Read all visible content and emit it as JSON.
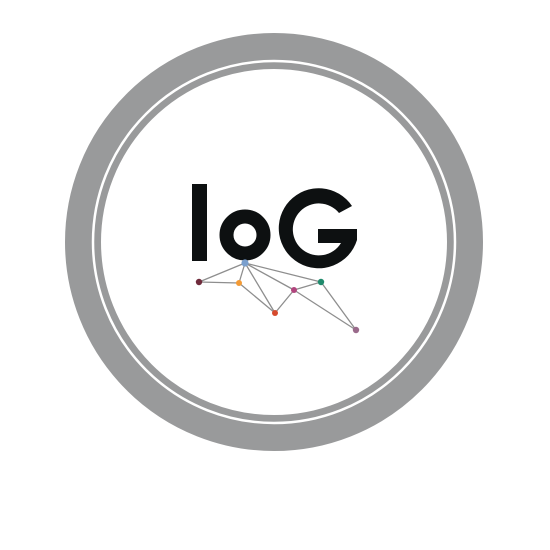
{
  "logo": {
    "text": "IoG",
    "icon": "network-mesh-icon",
    "colors": {
      "ring": "#999a9b",
      "ring_gap": "#ffffff",
      "background": "#ffffff",
      "wordmark": "#0d1011",
      "mesh_lines": "#8e8e8e",
      "node_1": "#6f2b3c",
      "node_2": "#7a9fcd",
      "node_3": "#f39a35",
      "node_4": "#d64a2e",
      "node_5": "#b0457d",
      "node_6": "#1f8a6c",
      "node_7": "#9a6a8b"
    }
  }
}
